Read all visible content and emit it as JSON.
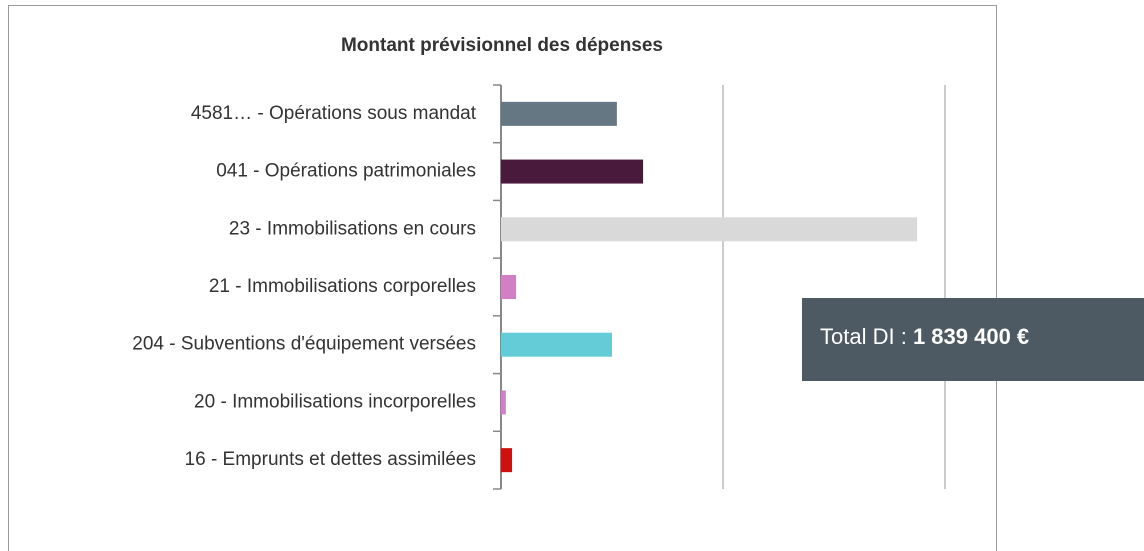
{
  "chart_data": {
    "type": "hbar",
    "title": "Montant prévisionnel des dépenses",
    "categories": [
      "4581… - Opérations sous mandat",
      "041 - Opérations patrimoniales",
      "23 - Immobilisations en cours",
      "21 - Immobilisations corporelles",
      "204 - Subventions d'équipement versées",
      "20 - Immobilisations incorporelles",
      "16 - Emprunts et dettes assimilées"
    ],
    "values": [
      261000,
      320000,
      937000,
      34000,
      250000,
      11000,
      25000
    ],
    "colors": [
      "#667784",
      "#4a1a3c",
      "#d9d9d9",
      "#d27fc5",
      "#64ccd6",
      "#d27fc5",
      "#cc1111"
    ],
    "xlim": [
      0,
      1000000
    ],
    "xticks": [
      0,
      500000,
      1000000
    ],
    "grid": true,
    "annotation": {
      "label": "Total DI :",
      "value": "1 839 400 €"
    }
  }
}
